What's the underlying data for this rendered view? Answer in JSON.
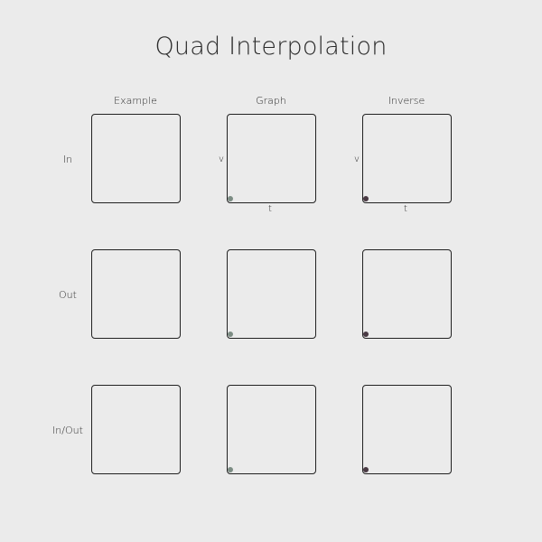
{
  "title": "Quad Interpolation",
  "columns": [
    "Example",
    "Graph",
    "Inverse"
  ],
  "rows": [
    "In",
    "Out",
    "In/Out"
  ],
  "axes": {
    "v": "v",
    "t": "t"
  },
  "colors": {
    "background": "#ebebeb",
    "graph_dot": "#7c8c83",
    "inverse_dot": "#4a3a44",
    "border": "#222222"
  },
  "icons": {
    "graph_marker": "dot-icon",
    "inverse_marker": "dot-icon"
  }
}
